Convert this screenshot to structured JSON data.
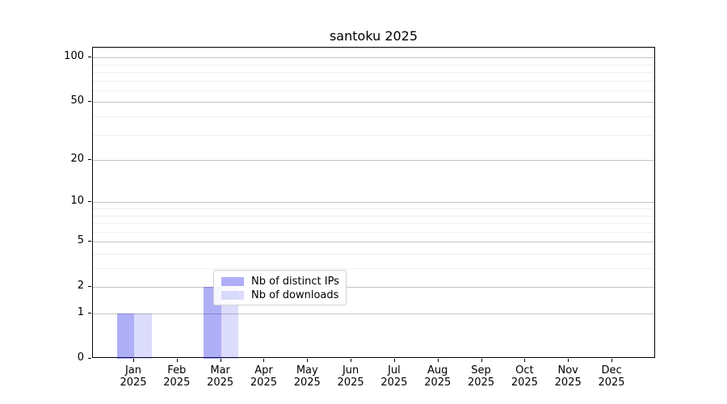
{
  "title": "santoku 2025",
  "chart_data": {
    "type": "bar",
    "title": "santoku 2025",
    "categories": [
      "Jan",
      "Feb",
      "Mar",
      "Apr",
      "May",
      "Jun",
      "Jul",
      "Aug",
      "Sep",
      "Oct",
      "Nov",
      "Dec"
    ],
    "x_year": "2025",
    "series": [
      {
        "name": "Nb of distinct IPs",
        "color": "rgba(20,20,235,0.34)",
        "color_hex": "#aaaaf8",
        "values": [
          1,
          0,
          2,
          0,
          0,
          0,
          0,
          0,
          0,
          0,
          0,
          0
        ]
      },
      {
        "name": "Nb of downloads",
        "color": "rgba(20,20,235,0.15)",
        "color_hex": "#d9d9fa",
        "values": [
          1,
          0,
          2,
          0,
          0,
          0,
          0,
          0,
          0,
          0,
          0,
          0
        ]
      }
    ],
    "y_axis": {
      "scale": "log10(1+x)",
      "ticks": [
        0,
        1,
        2,
        5,
        10,
        20,
        50,
        100
      ],
      "minor_ticks": [
        3,
        4,
        6,
        7,
        8,
        9,
        30,
        40,
        60,
        70,
        80,
        90
      ],
      "ylim": [
        0,
        117
      ]
    },
    "xlabel": "",
    "ylabel": "",
    "grid": true,
    "legend": {
      "position": "lower center",
      "entries": [
        "Nb of distinct IPs",
        "Nb of downloads"
      ]
    },
    "colors": {
      "major_grid": "#c3c3c3",
      "minor_grid": "#efefef",
      "axis": "#000000",
      "background": "#ffffff"
    }
  }
}
